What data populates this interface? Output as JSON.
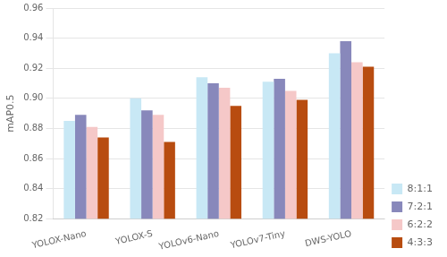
{
  "chart_data": {
    "type": "bar",
    "categories": [
      "YOLOX-Nano",
      "YOLOX-S",
      "YOLOv6-Nano",
      "YOLOv7-Tiny",
      "DWS-YOLO"
    ],
    "series": [
      {
        "name": "8:1:1",
        "color": "#c8e8f5",
        "values": [
          0.885,
          0.9,
          0.914,
          0.911,
          0.93
        ]
      },
      {
        "name": "7:2:1",
        "color": "#8888bb",
        "values": [
          0.889,
          0.892,
          0.91,
          0.913,
          0.938
        ]
      },
      {
        "name": "6:2:2",
        "color": "#f5c8c8",
        "values": [
          0.881,
          0.889,
          0.907,
          0.905,
          0.924
        ]
      },
      {
        "name": "4:3:3",
        "color": "#b84c10",
        "values": [
          0.874,
          0.871,
          0.895,
          0.899,
          0.921
        ]
      }
    ],
    "ylabel": "mAP0.5",
    "ylim": [
      0.82,
      0.96
    ],
    "yticks": [
      0.82,
      0.84,
      0.86,
      0.88,
      {
        "value": 0.9,
        "label": "0.90"
      },
      0.92,
      0.94,
      0.96
    ],
    "grid": "y",
    "legend": "right"
  }
}
